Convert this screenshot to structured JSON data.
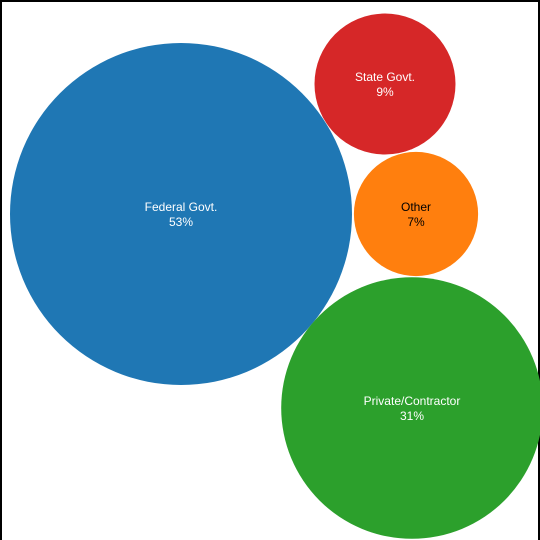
{
  "chart_data": {
    "type": "bubble",
    "title": "",
    "legend": "none",
    "grid": false,
    "series": [
      {
        "label": "Federal Govt.",
        "percent_label": "53%",
        "value": 53,
        "color": "#1f77b4"
      },
      {
        "label": "Private/Contractor",
        "percent_label": "31%",
        "value": 31,
        "color": "#2ca02c"
      },
      {
        "label": "State Govt.",
        "percent_label": "9%",
        "value": 9,
        "color": "#d62728"
      },
      {
        "label": "Other",
        "percent_label": "7%",
        "value": 7,
        "color": "#ff7f0e"
      }
    ]
  }
}
